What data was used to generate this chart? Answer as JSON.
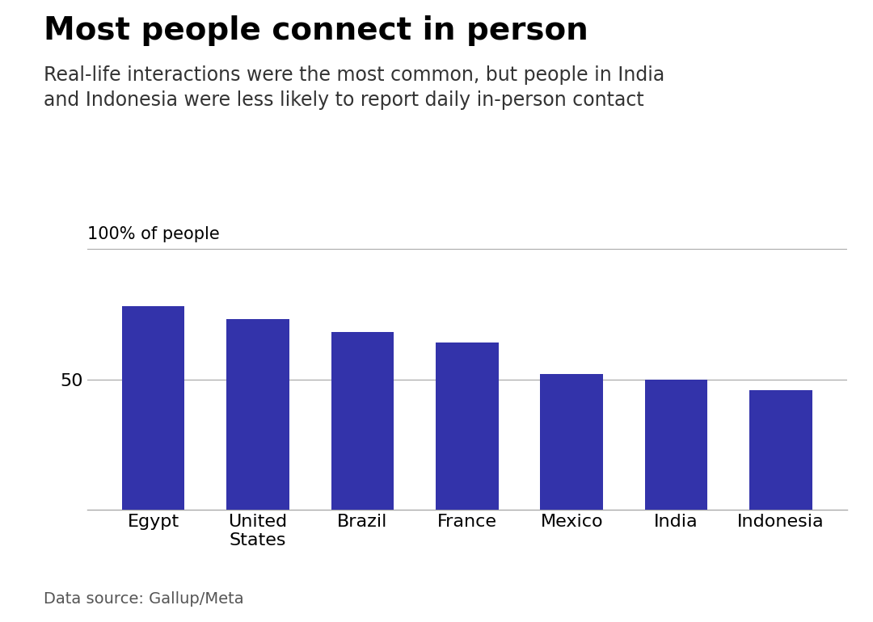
{
  "title": "Most people connect in person",
  "subtitle": "Real-life interactions were the most common, but people in India\nand Indonesia were less likely to report daily in-person contact",
  "ylabel_text": "100% of people",
  "data_source": "Data source: Gallup/Meta",
  "categories": [
    "Egypt",
    "United\nStates",
    "Brazil",
    "France",
    "Mexico",
    "India",
    "Indonesia"
  ],
  "values": [
    78,
    73,
    68,
    64,
    52,
    50,
    46
  ],
  "bar_color": "#3333aa",
  "ylim": [
    0,
    100
  ],
  "ytick_value": 50,
  "background_color": "#ffffff",
  "title_fontsize": 28,
  "subtitle_fontsize": 17,
  "ylabel_fontsize": 15,
  "ytick_fontsize": 16,
  "xtick_fontsize": 16,
  "source_fontsize": 14
}
